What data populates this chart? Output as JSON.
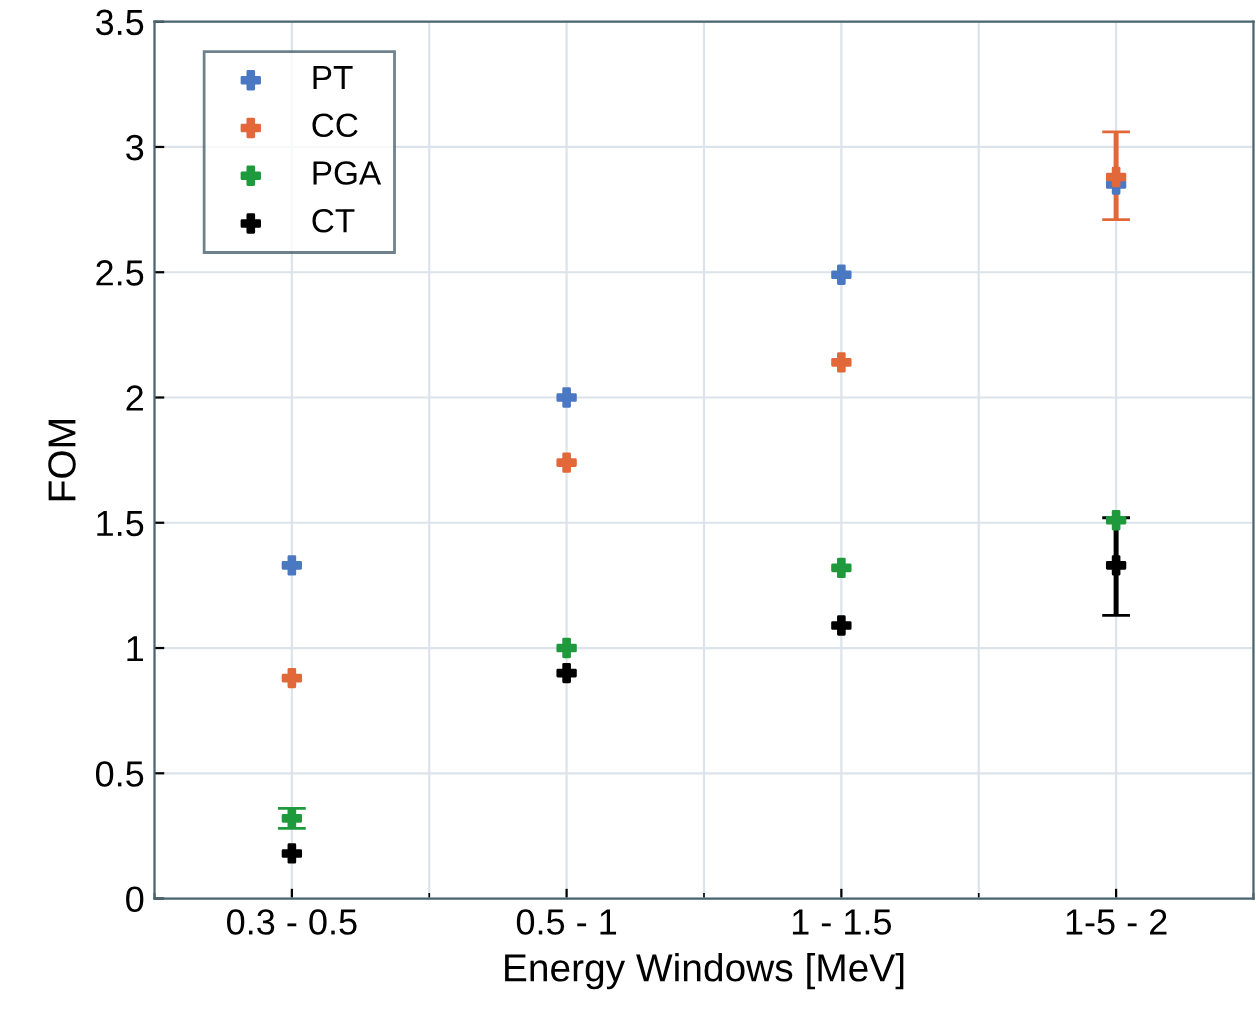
{
  "chart_data": {
    "type": "scatter",
    "xlabel": "Energy Windows [MeV]",
    "ylabel": "FOM",
    "categories": [
      "0.3 - 0.5",
      "0.5 - 1",
      "1 - 1.5",
      "1-5 - 2"
    ],
    "series": [
      {
        "name": "PT",
        "color": "#4a78c2",
        "values": [
          1.33,
          2.0,
          2.49,
          2.85
        ]
      },
      {
        "name": "CC",
        "color": "#e2683a",
        "values": [
          0.88,
          1.74,
          2.14,
          2.88
        ],
        "errors": [
          null,
          null,
          null,
          [
            2.71,
            3.06
          ]
        ]
      },
      {
        "name": "PGA",
        "color": "#1e9a3c",
        "values": [
          0.32,
          1.0,
          1.32,
          1.51
        ],
        "errors": [
          [
            0.28,
            0.36
          ],
          null,
          null,
          null
        ]
      },
      {
        "name": "CT",
        "color": "#000000",
        "values": [
          0.18,
          0.9,
          1.09,
          1.33
        ],
        "errors": [
          null,
          null,
          null,
          [
            1.13,
            1.52
          ]
        ]
      }
    ],
    "ylim": [
      0,
      3.5
    ],
    "yticks": [
      0,
      0.5,
      1,
      1.5,
      2,
      2.5,
      3,
      3.5
    ],
    "grid": true,
    "legend": "top left",
    "marker": "cross"
  }
}
